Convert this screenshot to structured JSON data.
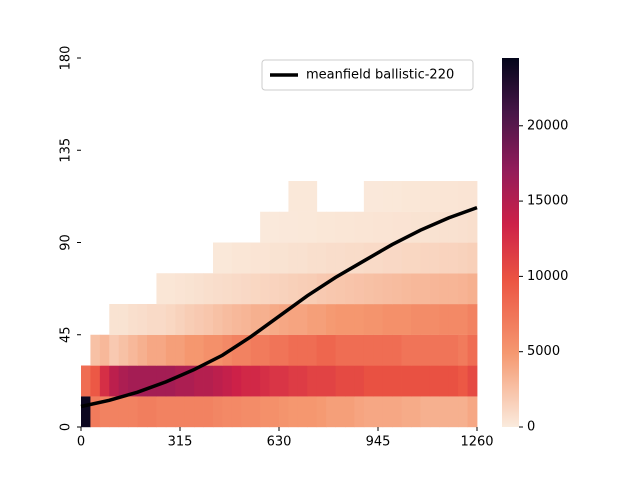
{
  "chart_data": {
    "type": "heatmap",
    "xlim": [
      0,
      1260
    ],
    "ylim": [
      0,
      180
    ],
    "xticks": [
      0,
      315,
      630,
      945,
      1260
    ],
    "yticks": [
      0,
      45,
      90,
      135,
      180
    ],
    "x_bins": [
      0,
      30,
      60,
      90,
      120,
      150,
      180,
      210,
      240,
      270,
      300,
      330,
      360,
      390,
      420,
      450,
      480,
      510,
      540,
      570,
      600,
      630,
      660,
      690,
      720,
      750,
      780,
      810,
      840,
      870,
      900,
      930,
      960,
      990,
      1020,
      1050,
      1080,
      1110,
      1140,
      1170,
      1200,
      1230,
      1260
    ],
    "y_bins": [
      0,
      15,
      30,
      45,
      60,
      75,
      90,
      105,
      120
    ],
    "z": [
      [
        24000,
        7000,
        6500,
        6500,
        6500,
        6500,
        6800,
        6800,
        6500,
        6500,
        6500,
        6500,
        6500,
        6500,
        6200,
        6000,
        6000,
        5800,
        5800,
        5500,
        5500,
        5200,
        5000,
        5000,
        5000,
        4800,
        4500,
        4500,
        4500,
        4200,
        4000,
        4000,
        4000,
        4000,
        3800,
        3800,
        3500,
        3500,
        3500,
        3500,
        3500,
        4000
      ],
      [
        8000,
        9500,
        12500,
        14500,
        15500,
        16000,
        16000,
        16000,
        16000,
        16000,
        15500,
        15500,
        15000,
        15000,
        14500,
        14000,
        13500,
        13000,
        13000,
        12500,
        12000,
        12000,
        11500,
        11500,
        11000,
        11000,
        11000,
        10500,
        10500,
        10500,
        10000,
        10000,
        10000,
        10000,
        10000,
        10000,
        10000,
        10000,
        10000,
        10000,
        9500,
        10500
      ],
      [
        null,
        2500,
        3000,
        2000,
        2500,
        3000,
        3500,
        4000,
        4000,
        4500,
        4500,
        5000,
        5000,
        5500,
        5500,
        6000,
        6500,
        6500,
        7000,
        7000,
        7500,
        7500,
        8000,
        8000,
        8000,
        8500,
        8500,
        8000,
        8000,
        8000,
        8000,
        8000,
        8000,
        8000,
        7500,
        7500,
        7500,
        7500,
        7500,
        7500,
        7000,
        8000
      ],
      [
        null,
        null,
        null,
        500,
        500,
        700,
        800,
        1000,
        1000,
        1200,
        1500,
        1800,
        2000,
        2200,
        2500,
        2800,
        3000,
        3200,
        3500,
        3500,
        3800,
        4000,
        4200,
        4200,
        4500,
        4500,
        4800,
        5000,
        5000,
        5000,
        5200,
        5200,
        5500,
        5500,
        5500,
        5800,
        5800,
        5800,
        6000,
        6000,
        6000,
        6500
      ],
      [
        null,
        null,
        null,
        null,
        null,
        null,
        null,
        null,
        300,
        300,
        400,
        500,
        600,
        700,
        800,
        900,
        1000,
        1100,
        1200,
        1300,
        1400,
        1500,
        1600,
        1700,
        1800,
        2000,
        2100,
        2200,
        2300,
        2400,
        2500,
        2600,
        2700,
        2800,
        2900,
        3000,
        3000,
        3100,
        3200,
        3200,
        3300,
        3500
      ],
      [
        null,
        null,
        null,
        null,
        null,
        null,
        null,
        null,
        null,
        null,
        null,
        null,
        null,
        null,
        200,
        200,
        300,
        300,
        400,
        400,
        500,
        500,
        600,
        600,
        700,
        700,
        800,
        800,
        900,
        900,
        1000,
        1000,
        1100,
        1100,
        1200,
        1200,
        1300,
        1300,
        1400,
        1400,
        1500,
        1600
      ],
      [
        null,
        null,
        null,
        null,
        null,
        null,
        null,
        null,
        null,
        null,
        null,
        null,
        null,
        null,
        null,
        null,
        null,
        null,
        null,
        100,
        100,
        150,
        150,
        200,
        200,
        250,
        250,
        300,
        300,
        350,
        350,
        400,
        400,
        450,
        450,
        500,
        500,
        550,
        600,
        600,
        650,
        700
      ],
      [
        null,
        null,
        null,
        null,
        null,
        null,
        null,
        null,
        null,
        null,
        null,
        null,
        null,
        null,
        null,
        null,
        null,
        null,
        null,
        null,
        null,
        null,
        200,
        200,
        200,
        null,
        null,
        null,
        null,
        null,
        150,
        150,
        200,
        200,
        250,
        250,
        300,
        300,
        350,
        350,
        400,
        400
      ]
    ],
    "clim": [
      0,
      24500
    ],
    "cticks": [
      0,
      5000,
      10000,
      15000,
      20000
    ],
    "series": [
      {
        "name": "meanfield ballistic-220",
        "color": "#000000",
        "x": [
          0,
          90,
          180,
          270,
          360,
          450,
          540,
          630,
          720,
          810,
          900,
          990,
          1080,
          1170,
          1260
        ],
        "y": [
          10,
          13,
          17,
          22,
          28,
          35,
          44,
          54,
          64,
          73,
          81,
          89,
          96,
          102,
          107
        ]
      }
    ],
    "legend": "upper right"
  }
}
